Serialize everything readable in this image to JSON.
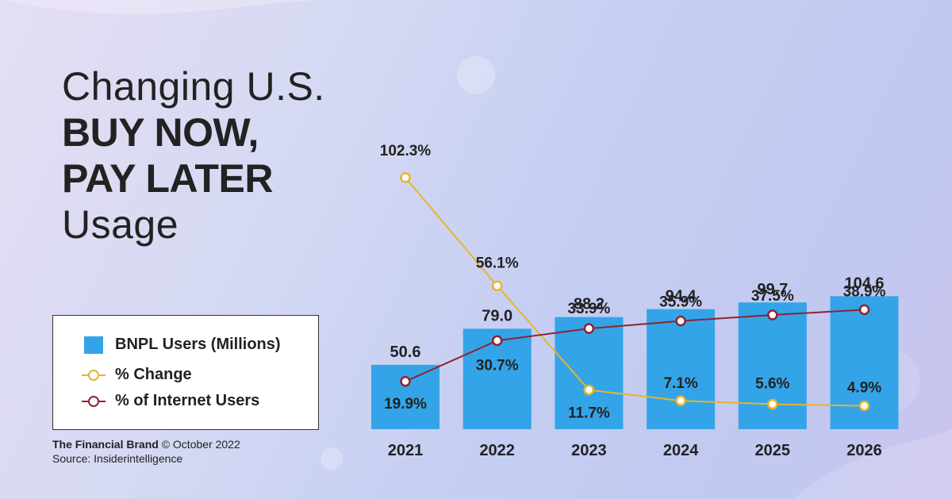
{
  "title": {
    "line1": "Changing U.S.",
    "line2": "BUY NOW,",
    "line3": "PAY LATER",
    "line4": "Usage"
  },
  "legend": {
    "bars": "BNPL Users (Millions)",
    "change": "% Change",
    "internet": "% of Internet Users"
  },
  "credit": {
    "brand": "The Financial Brand",
    "date": "© October 2022",
    "source": "Source: Insiderintelligence"
  },
  "colors": {
    "bar": "#34a4e8",
    "change_line": "#e8b52a",
    "internet_line": "#8e2330"
  },
  "chart_data": {
    "type": "bar",
    "categories": [
      "2021",
      "2022",
      "2023",
      "2024",
      "2025",
      "2026"
    ],
    "series": [
      {
        "name": "BNPL Users (Millions)",
        "type": "bar",
        "values": [
          50.6,
          79.0,
          88.2,
          94.4,
          99.7,
          104.6
        ],
        "labels": [
          "50.6",
          "79.0",
          "88.2",
          "94.4",
          "99.7",
          "104.6"
        ]
      },
      {
        "name": "% Change",
        "type": "line",
        "values": [
          102.3,
          56.1,
          11.7,
          7.1,
          5.6,
          4.9
        ],
        "labels": [
          "102.3%",
          "56.1%",
          "11.7%",
          "7.1%",
          "5.6%",
          "4.9%"
        ]
      },
      {
        "name": "% of Internet Users",
        "type": "line",
        "values": [
          19.9,
          30.7,
          33.9,
          35.9,
          37.5,
          38.9
        ],
        "labels": [
          "19.9%",
          "30.7%",
          "33.9%",
          "35.9%",
          "37.5%",
          "38.9%"
        ]
      }
    ],
    "title": "Changing U.S. BUY NOW, PAY LATER Usage",
    "xlabel": "",
    "ylabel": "",
    "legend": "bottom-left",
    "grid": false
  }
}
